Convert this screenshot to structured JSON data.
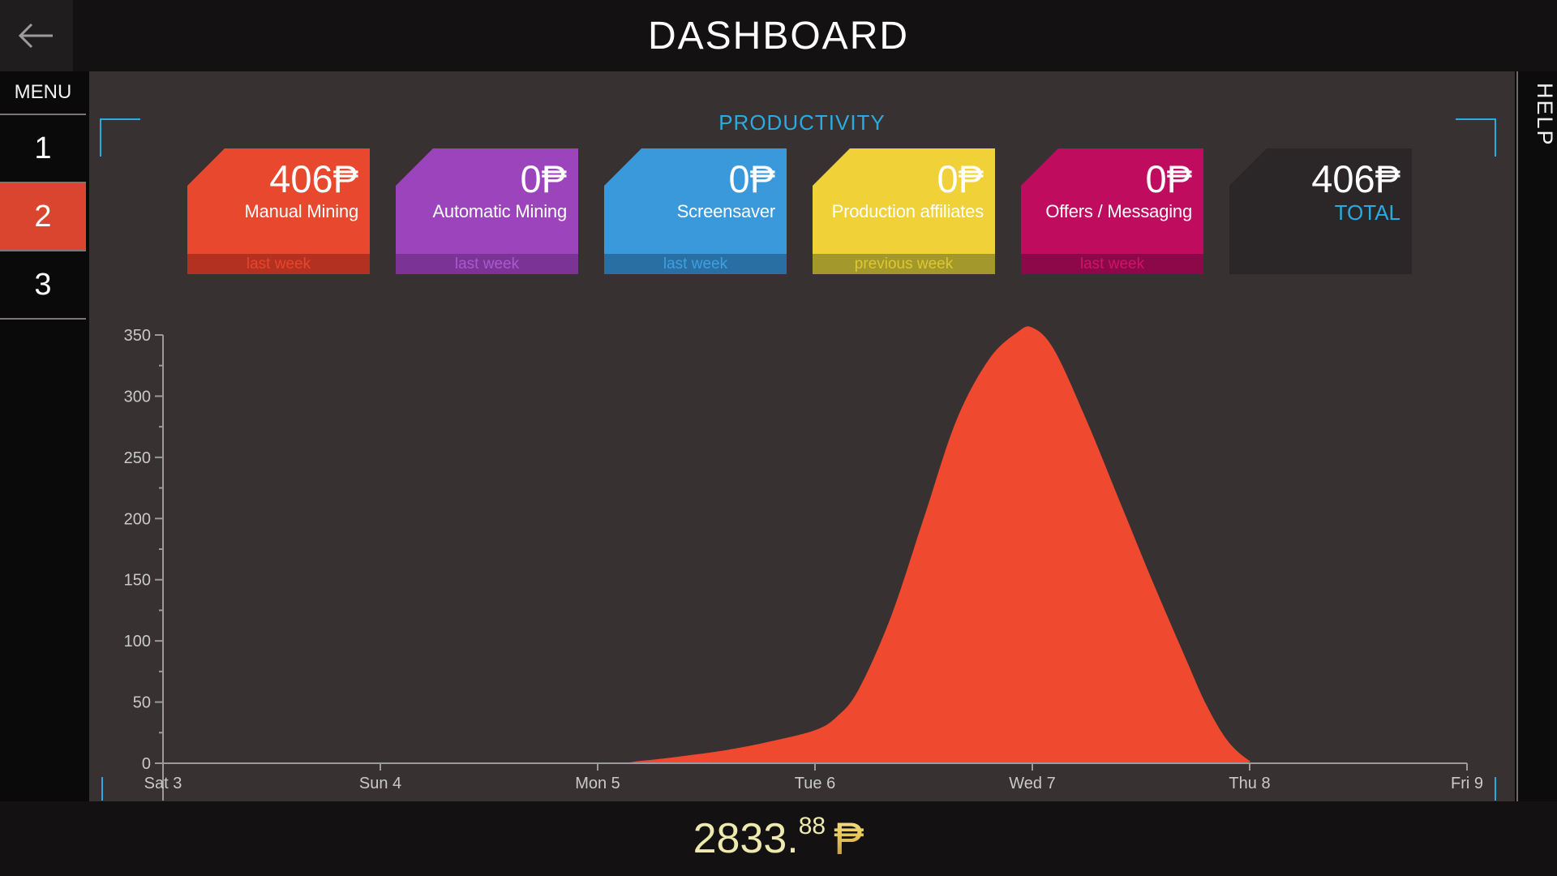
{
  "app": {
    "title": "DASHBOARD"
  },
  "sidebar": {
    "menu_label": "MENU",
    "items": [
      {
        "label": "1",
        "active": false
      },
      {
        "label": "2",
        "active": true
      },
      {
        "label": "3",
        "active": false
      }
    ]
  },
  "help": {
    "label": "HELP"
  },
  "productivity": {
    "title": "PRODUCTIVITY"
  },
  "cards": [
    {
      "amount": "406",
      "currency": "₱",
      "label": "Manual Mining",
      "footer": "last week",
      "bg": "#e8482e",
      "footer_bg": "#b23120",
      "footer_text": "#e8452c"
    },
    {
      "amount": "0",
      "currency": "₱",
      "label": "Automatic Mining",
      "footer": "last week",
      "bg": "#9b44bc",
      "footer_bg": "#7b3495",
      "footer_text": "#a959cf"
    },
    {
      "amount": "0",
      "currency": "₱",
      "label": "Screensaver",
      "footer": "last week",
      "bg": "#3a99db",
      "footer_bg": "#2a6fa3",
      "footer_text": "#3f9fdf"
    },
    {
      "amount": "0",
      "currency": "₱",
      "label": "Production affiliates",
      "footer": "previous week",
      "bg": "#f0d138",
      "footer_bg": "#a2982c",
      "footer_text": "#dec730"
    },
    {
      "amount": "0",
      "currency": "₱",
      "label": "Offers / Messaging",
      "footer": "last week",
      "bg": "#c00c5f",
      "footer_bg": "#8d0848",
      "footer_text": "#cf1468"
    }
  ],
  "total_card": {
    "amount": "406",
    "currency": "₱",
    "label": "TOTAL"
  },
  "chart_data": {
    "type": "area",
    "title": "PRODUCTIVITY",
    "xlabel": "",
    "ylabel": "",
    "xlim": [
      3,
      9
    ],
    "ylim": [
      0,
      350
    ],
    "x_tick_values": [
      3,
      4,
      5,
      6,
      7,
      8,
      9
    ],
    "x_tick_labels": [
      "Sat 3",
      "Sun 4",
      "Mon 5",
      "Tue 6",
      "Wed 7",
      "Thu 8",
      "Fri 9"
    ],
    "y_ticks": [
      0,
      50,
      100,
      150,
      200,
      250,
      300,
      350
    ],
    "y_minor_step": 25,
    "grid": false,
    "legend": false,
    "axis_color": "#9a9a9a",
    "label_color": "#c9c9c9",
    "series": [
      {
        "name": "productivity",
        "color": "#ef4930",
        "points": [
          [
            3,
            0
          ],
          [
            4,
            0
          ],
          [
            5,
            0
          ],
          [
            5.2,
            2
          ],
          [
            5.4,
            6
          ],
          [
            5.6,
            11
          ],
          [
            5.8,
            18
          ],
          [
            6.0,
            27
          ],
          [
            6.1,
            38
          ],
          [
            6.2,
            60
          ],
          [
            6.35,
            120
          ],
          [
            6.5,
            200
          ],
          [
            6.65,
            280
          ],
          [
            6.8,
            330
          ],
          [
            6.93,
            352
          ],
          [
            7.0,
            356
          ],
          [
            7.1,
            338
          ],
          [
            7.25,
            280
          ],
          [
            7.4,
            215
          ],
          [
            7.55,
            150
          ],
          [
            7.7,
            88
          ],
          [
            7.8,
            48
          ],
          [
            7.9,
            18
          ],
          [
            8.0,
            2
          ],
          [
            8.05,
            0
          ],
          [
            9,
            0
          ]
        ]
      }
    ],
    "peak": {
      "x_label": "Wed 7",
      "value": 356
    }
  },
  "bottom_bar": {
    "amount_int": "2833.",
    "amount_frac": "88",
    "currency": "₱"
  },
  "colors": {
    "accent_cyan": "#29abe2",
    "content_bg": "#373132",
    "bar_bg": "#141112",
    "sidebar_bg": "#0b0a0a",
    "active_item": "#d9452f",
    "chart_fill": "#ef4930",
    "axis": "#9a9a9a",
    "tick_label": "#c9c9c9",
    "balance_text": "#eee9ad",
    "gold": "#e9c658",
    "separator": "#7a7676",
    "back_btn_bg": "#201d1e",
    "total_card_bg": "#2b2627"
  }
}
